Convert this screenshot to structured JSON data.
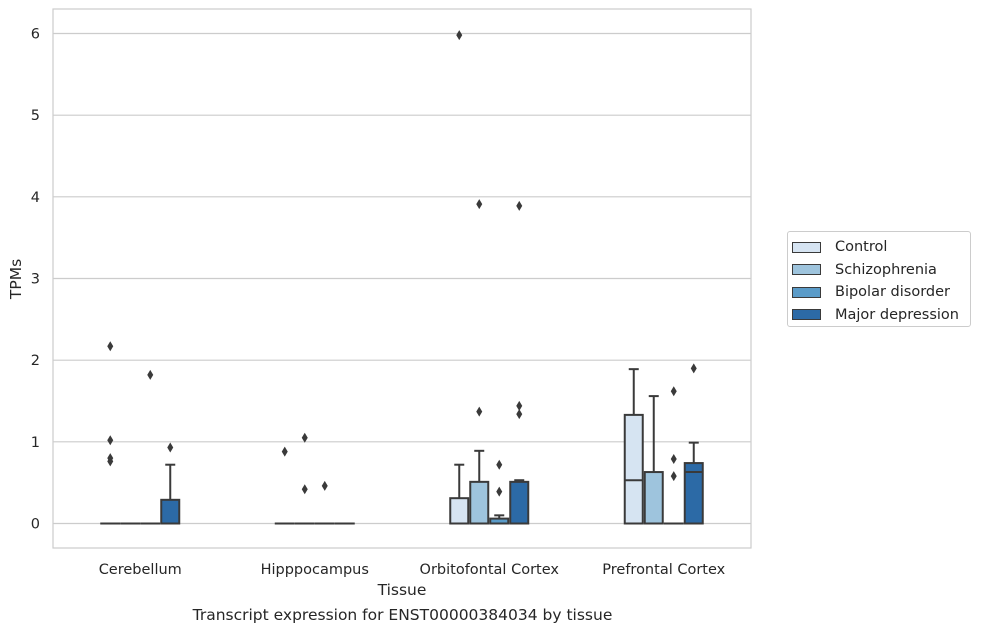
{
  "chart_data": {
    "type": "box",
    "title": "",
    "caption": "Transcript expression for ENST00000384034 by tissue",
    "xlabel": "Tissue",
    "ylabel": "TPMs",
    "ylim": [
      -0.3,
      6.3
    ],
    "yticks": [
      0,
      1,
      2,
      3,
      4,
      5,
      6
    ],
    "grid": true,
    "legend_position": "right",
    "categories": [
      "Cerebellum",
      "Hipppocampus",
      "Orbitofontal Cortex",
      "Prefrontal Cortex"
    ],
    "series": [
      {
        "name": "Control",
        "color": "#d6e4f2",
        "boxes": [
          {
            "q1": 0,
            "median": 0,
            "q3": 0,
            "whisker_low": 0,
            "whisker_high": 0,
            "outliers": [
              2.17,
              1.02,
              0.8,
              0.76
            ]
          },
          {
            "q1": 0,
            "median": 0,
            "q3": 0,
            "whisker_low": 0,
            "whisker_high": 0,
            "outliers": [
              0.88
            ]
          },
          {
            "q1": 0,
            "median": 0,
            "q3": 0.31,
            "whisker_low": 0,
            "whisker_high": 0.72,
            "outliers": [
              5.98
            ]
          },
          {
            "q1": 0,
            "median": 0.53,
            "q3": 1.33,
            "whisker_low": 0,
            "whisker_high": 1.89,
            "outliers": []
          }
        ]
      },
      {
        "name": "Schizophrenia",
        "color": "#9ec4dd",
        "boxes": [
          {
            "q1": 0,
            "median": 0,
            "q3": 0,
            "whisker_low": 0,
            "whisker_high": 0,
            "outliers": []
          },
          {
            "q1": 0,
            "median": 0,
            "q3": 0,
            "whisker_low": 0,
            "whisker_high": 0,
            "outliers": [
              1.05,
              0.42
            ]
          },
          {
            "q1": 0,
            "median": 0,
            "q3": 0.51,
            "whisker_low": 0,
            "whisker_high": 0.89,
            "outliers": [
              3.91,
              1.37
            ]
          },
          {
            "q1": 0,
            "median": 0,
            "q3": 0.63,
            "whisker_low": 0,
            "whisker_high": 1.56,
            "outliers": []
          }
        ]
      },
      {
        "name": "Bipolar disorder",
        "color": "#5a9bc8",
        "boxes": [
          {
            "q1": 0,
            "median": 0,
            "q3": 0,
            "whisker_low": 0,
            "whisker_high": 0,
            "outliers": [
              1.82
            ]
          },
          {
            "q1": 0,
            "median": 0,
            "q3": 0,
            "whisker_low": 0,
            "whisker_high": 0,
            "outliers": [
              0.46
            ]
          },
          {
            "q1": 0,
            "median": 0,
            "q3": 0.06,
            "whisker_low": 0,
            "whisker_high": 0.1,
            "outliers": [
              0.72,
              0.39
            ]
          },
          {
            "q1": 0,
            "median": 0,
            "q3": 0,
            "whisker_low": 0,
            "whisker_high": 0,
            "outliers": [
              1.62,
              0.79,
              0.58
            ]
          }
        ]
      },
      {
        "name": "Major depression",
        "color": "#2c6aa6",
        "boxes": [
          {
            "q1": 0,
            "median": 0,
            "q3": 0.29,
            "whisker_low": 0,
            "whisker_high": 0.72,
            "outliers": [
              0.93
            ]
          },
          {
            "q1": 0,
            "median": 0,
            "q3": 0,
            "whisker_low": 0,
            "whisker_high": 0,
            "outliers": []
          },
          {
            "q1": 0,
            "median": 0,
            "q3": 0.51,
            "whisker_low": 0,
            "whisker_high": 0.53,
            "outliers": [
              3.89,
              1.44,
              1.34
            ]
          },
          {
            "q1": 0,
            "median": 0.63,
            "q3": 0.74,
            "whisker_low": 0,
            "whisker_high": 0.99,
            "outliers": [
              1.9
            ]
          }
        ]
      }
    ]
  }
}
